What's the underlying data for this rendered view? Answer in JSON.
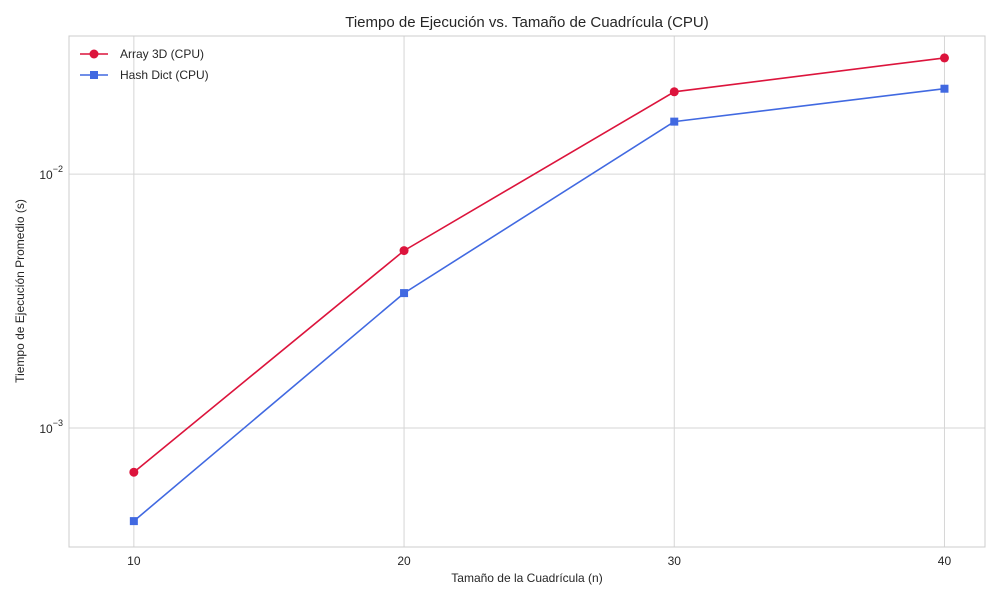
{
  "chart_data": {
    "type": "line",
    "title": "Tiempo de Ejecución vs. Tamaño de Cuadrícula (CPU)",
    "xlabel": "Tamaño de la Cuadrícula (n)",
    "ylabel": "Tiempo de Ejecución Promedio (s)",
    "x": [
      10,
      20,
      30,
      40
    ],
    "x_ticks": [
      "10",
      "20",
      "30",
      "40"
    ],
    "xlim": [
      7.6,
      41.5
    ],
    "yscale": "log",
    "ylim": [
      0.00034,
      0.035
    ],
    "y_ticks": [
      {
        "value": 0.001,
        "base": "10",
        "exp": "−3"
      },
      {
        "value": 0.01,
        "base": "10",
        "exp": "−2"
      }
    ],
    "grid": true,
    "legend_position": "top-left",
    "series": [
      {
        "name": "Array 3D (CPU)",
        "color": "#dc143c",
        "marker": "circle",
        "values": [
          0.00067,
          0.005,
          0.0211,
          0.0287
        ]
      },
      {
        "name": "Hash Dict (CPU)",
        "color": "#4169e1",
        "marker": "square",
        "values": [
          0.00043,
          0.0034,
          0.0161,
          0.0217
        ]
      }
    ]
  }
}
